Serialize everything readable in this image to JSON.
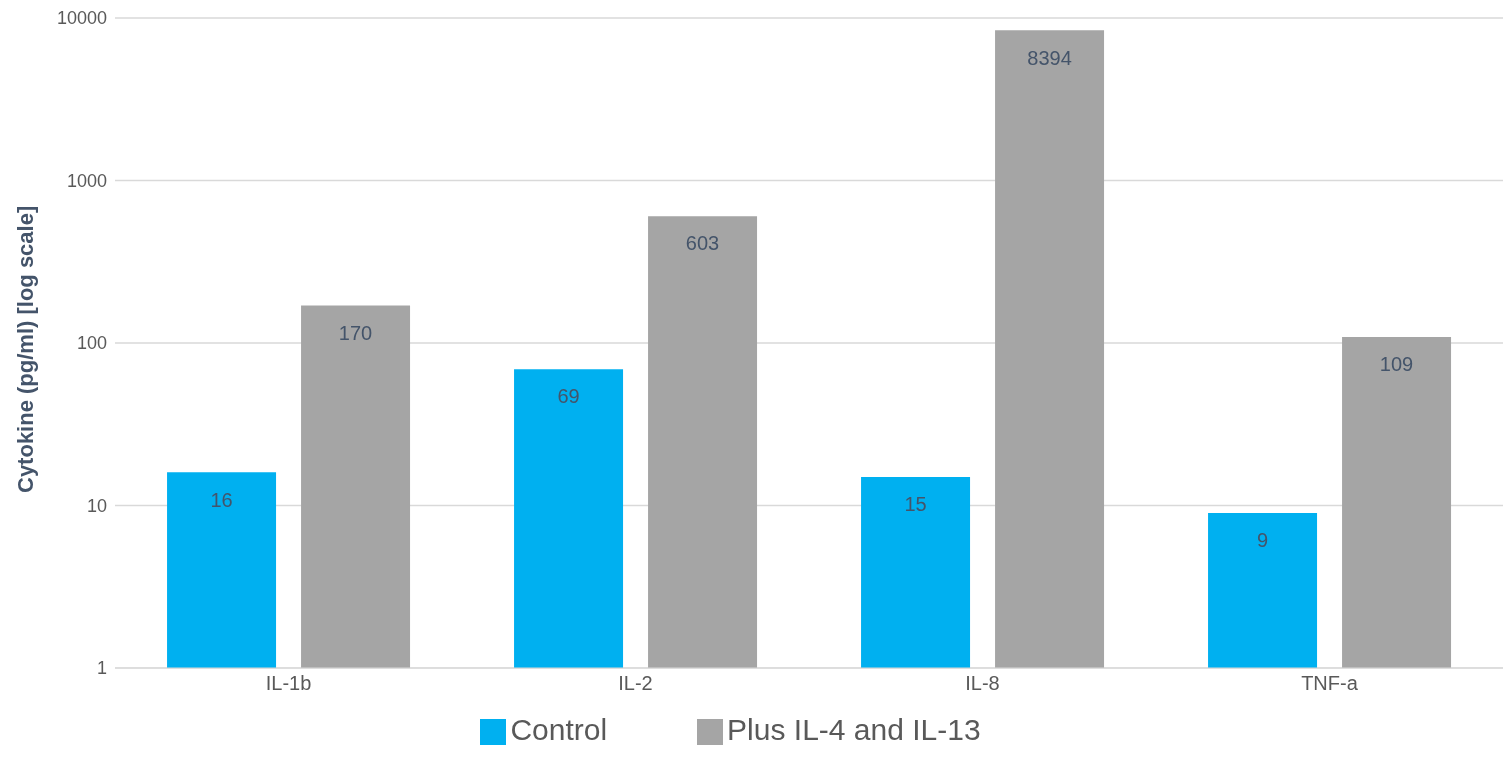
{
  "chart_data": {
    "type": "bar",
    "ylabel": "Cytokine  (pg/ml) [log scale]",
    "categories": [
      "IL-1b",
      "IL-2",
      "IL-8",
      "TNF-a"
    ],
    "series": [
      {
        "name": "Control",
        "color": "#00b0f0",
        "values": [
          16,
          69,
          15,
          9
        ]
      },
      {
        "name": "Plus IL-4 and IL-13",
        "color": "#a5a5a5",
        "values": [
          170,
          603,
          8394,
          109
        ]
      }
    ],
    "ylim": [
      1,
      10000
    ],
    "yticks": [
      1,
      10,
      100,
      1000,
      10000
    ],
    "log": true,
    "grid": "y",
    "legend": "bottom",
    "data_labels": true
  }
}
